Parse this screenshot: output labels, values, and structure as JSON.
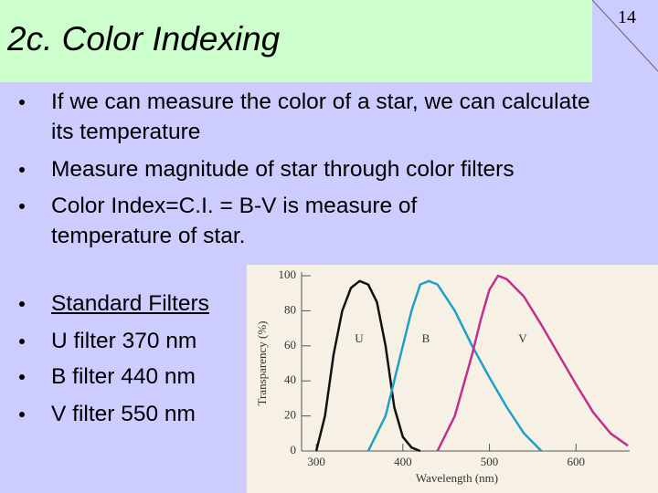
{
  "header": {
    "title": "2c.  Color Indexing",
    "page_number": "14"
  },
  "bullets": [
    "If we can measure the color of a star, we can calculate its temperature",
    "Measure magnitude of star through color filters",
    "Color Index=C.I. = B-V is measure of temperature of star."
  ],
  "filters": [
    "Standard Filters",
    "U filter 370 nm",
    "B filter 440 nm",
    "V filter 550 nm"
  ],
  "figure": {
    "type": "line",
    "ylabel": "Transparency (%)",
    "xlabel": "Wavelength (nm)",
    "xlim": [
      283,
      662
    ],
    "ylim": [
      0,
      100
    ],
    "xticks": [
      300,
      400,
      500,
      600
    ],
    "yticks": [
      0,
      20,
      40,
      60,
      80,
      100
    ],
    "series": [
      {
        "name": "U",
        "color": "#111111",
        "x": [
          300,
          310,
          320,
          330,
          340,
          350,
          360,
          370,
          380,
          390,
          400,
          410,
          420
        ],
        "values": [
          0,
          20,
          55,
          80,
          93,
          97,
          95,
          85,
          60,
          25,
          8,
          2,
          0
        ]
      },
      {
        "name": "B",
        "color": "#1fa0c8",
        "x": [
          360,
          380,
          400,
          410,
          420,
          430,
          440,
          460,
          480,
          500,
          520,
          540,
          560
        ],
        "values": [
          0,
          20,
          60,
          80,
          95,
          97,
          95,
          80,
          60,
          42,
          25,
          10,
          0
        ]
      },
      {
        "name": "V",
        "color": "#c0308e",
        "x": [
          440,
          460,
          480,
          490,
          500,
          510,
          520,
          540,
          560,
          580,
          600,
          620,
          640,
          660
        ],
        "values": [
          0,
          20,
          55,
          75,
          92,
          100,
          98,
          88,
          72,
          55,
          38,
          22,
          10,
          3
        ]
      }
    ]
  }
}
